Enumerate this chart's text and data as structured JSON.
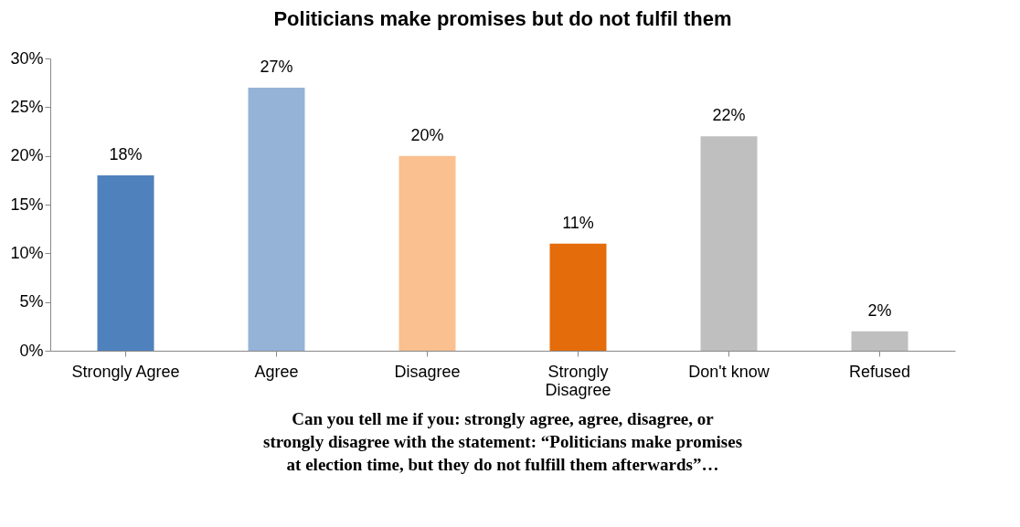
{
  "chart_data": {
    "type": "bar",
    "title": "Politicians make promises but do not fulfil them",
    "categories": [
      "Strongly Agree",
      "Agree",
      "Disagree",
      "Strongly Disagree",
      "Don't know",
      "Refused"
    ],
    "values": [
      18,
      27,
      20,
      11,
      22,
      2
    ],
    "colors": [
      "#4f81bd",
      "#95b3d7",
      "#fac090",
      "#e46c0a",
      "#bfbfbf",
      "#bfbfbf"
    ],
    "value_labels": [
      "18%",
      "27%",
      "20%",
      "11%",
      "22%",
      "2%"
    ],
    "ylim": [
      0,
      30
    ],
    "yticks": [
      {
        "value": 0,
        "label": "0%"
      },
      {
        "value": 5,
        "label": "5%"
      },
      {
        "value": 10,
        "label": "10%"
      },
      {
        "value": 15,
        "label": "15%"
      },
      {
        "value": 20,
        "label": "20%"
      },
      {
        "value": 25,
        "label": "25%"
      },
      {
        "value": 30,
        "label": "30%"
      }
    ],
    "grid": false,
    "annotations": [
      "Can you tell me if you: strongly agree, agree, disagree, or strongly disagree with the statement: “Politicians make promises at election time, but they do not fulfill them afterwards”…"
    ]
  }
}
